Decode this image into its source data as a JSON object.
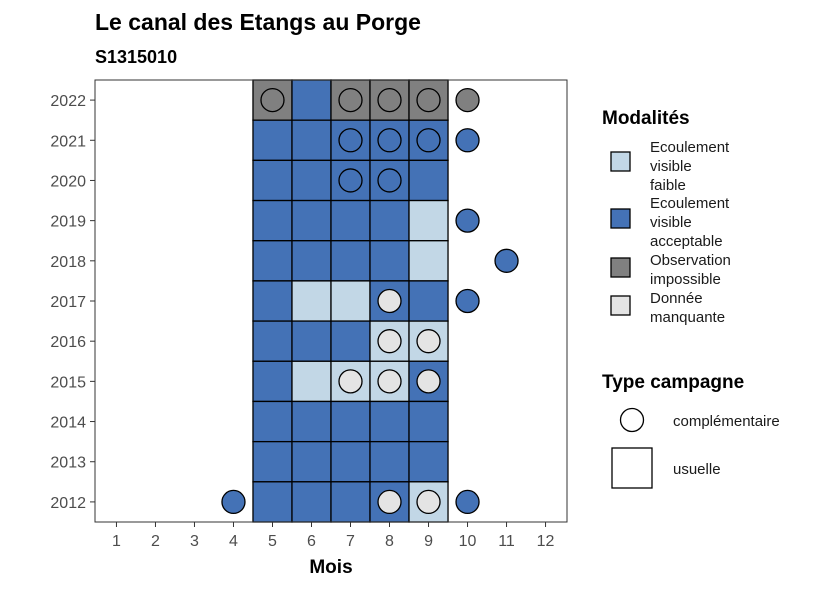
{
  "colors": {
    "faible": "#c2d7e6",
    "acceptable": "#4472b6",
    "impossible": "#808080",
    "manquante": "#e4e4e4",
    "border": "#000000"
  },
  "chart_data": {
    "type": "heatmap",
    "title": "Le canal des Etangs au Porge",
    "subtitle": "S1315010",
    "xlabel": "Mois",
    "ylabel": "",
    "x_ticks": [
      1,
      2,
      3,
      4,
      5,
      6,
      7,
      8,
      9,
      10,
      11,
      12
    ],
    "y_ticks": [
      2012,
      2013,
      2014,
      2015,
      2016,
      2017,
      2018,
      2019,
      2020,
      2021,
      2022
    ],
    "legend_modalites": {
      "title": "Modalités",
      "entries": [
        {
          "key": "faible",
          "lines": [
            "Ecoulement",
            "visible",
            "faible"
          ]
        },
        {
          "key": "acceptable",
          "lines": [
            "Ecoulement",
            "visible",
            "acceptable"
          ]
        },
        {
          "key": "impossible",
          "lines": [
            "Observation",
            "impossible"
          ]
        },
        {
          "key": "manquante",
          "lines": [
            "Donnée",
            "manquante"
          ]
        }
      ]
    },
    "legend_campagne": {
      "title": "Type campagne",
      "entries": [
        {
          "key": "complementaire",
          "label": "complémentaire"
        },
        {
          "key": "usuelle",
          "label": "usuelle"
        }
      ]
    },
    "tiles": [
      {
        "year": 2022,
        "month": 5,
        "value": "impossible"
      },
      {
        "year": 2022,
        "month": 6,
        "value": "acceptable"
      },
      {
        "year": 2022,
        "month": 7,
        "value": "impossible"
      },
      {
        "year": 2022,
        "month": 8,
        "value": "impossible"
      },
      {
        "year": 2022,
        "month": 9,
        "value": "impossible"
      },
      {
        "year": 2021,
        "month": 5,
        "value": "acceptable"
      },
      {
        "year": 2021,
        "month": 6,
        "value": "acceptable"
      },
      {
        "year": 2021,
        "month": 7,
        "value": "acceptable"
      },
      {
        "year": 2021,
        "month": 8,
        "value": "acceptable"
      },
      {
        "year": 2021,
        "month": 9,
        "value": "acceptable"
      },
      {
        "year": 2020,
        "month": 5,
        "value": "acceptable"
      },
      {
        "year": 2020,
        "month": 6,
        "value": "acceptable"
      },
      {
        "year": 2020,
        "month": 7,
        "value": "acceptable"
      },
      {
        "year": 2020,
        "month": 8,
        "value": "acceptable"
      },
      {
        "year": 2020,
        "month": 9,
        "value": "acceptable"
      },
      {
        "year": 2019,
        "month": 5,
        "value": "acceptable"
      },
      {
        "year": 2019,
        "month": 6,
        "value": "acceptable"
      },
      {
        "year": 2019,
        "month": 7,
        "value": "acceptable"
      },
      {
        "year": 2019,
        "month": 8,
        "value": "acceptable"
      },
      {
        "year": 2019,
        "month": 9,
        "value": "faible"
      },
      {
        "year": 2018,
        "month": 5,
        "value": "acceptable"
      },
      {
        "year": 2018,
        "month": 6,
        "value": "acceptable"
      },
      {
        "year": 2018,
        "month": 7,
        "value": "acceptable"
      },
      {
        "year": 2018,
        "month": 8,
        "value": "acceptable"
      },
      {
        "year": 2018,
        "month": 9,
        "value": "faible"
      },
      {
        "year": 2017,
        "month": 5,
        "value": "acceptable"
      },
      {
        "year": 2017,
        "month": 6,
        "value": "faible"
      },
      {
        "year": 2017,
        "month": 7,
        "value": "faible"
      },
      {
        "year": 2017,
        "month": 8,
        "value": "acceptable"
      },
      {
        "year": 2017,
        "month": 9,
        "value": "acceptable"
      },
      {
        "year": 2016,
        "month": 5,
        "value": "acceptable"
      },
      {
        "year": 2016,
        "month": 6,
        "value": "acceptable"
      },
      {
        "year": 2016,
        "month": 7,
        "value": "acceptable"
      },
      {
        "year": 2016,
        "month": 8,
        "value": "faible"
      },
      {
        "year": 2016,
        "month": 9,
        "value": "faible"
      },
      {
        "year": 2015,
        "month": 5,
        "value": "acceptable"
      },
      {
        "year": 2015,
        "month": 6,
        "value": "faible"
      },
      {
        "year": 2015,
        "month": 7,
        "value": "faible"
      },
      {
        "year": 2015,
        "month": 8,
        "value": "faible"
      },
      {
        "year": 2015,
        "month": 9,
        "value": "acceptable"
      },
      {
        "year": 2014,
        "month": 5,
        "value": "acceptable"
      },
      {
        "year": 2014,
        "month": 6,
        "value": "acceptable"
      },
      {
        "year": 2014,
        "month": 7,
        "value": "acceptable"
      },
      {
        "year": 2014,
        "month": 8,
        "value": "acceptable"
      },
      {
        "year": 2014,
        "month": 9,
        "value": "acceptable"
      },
      {
        "year": 2013,
        "month": 5,
        "value": "acceptable"
      },
      {
        "year": 2013,
        "month": 6,
        "value": "acceptable"
      },
      {
        "year": 2013,
        "month": 7,
        "value": "acceptable"
      },
      {
        "year": 2013,
        "month": 8,
        "value": "acceptable"
      },
      {
        "year": 2013,
        "month": 9,
        "value": "acceptable"
      },
      {
        "year": 2012,
        "month": 5,
        "value": "acceptable"
      },
      {
        "year": 2012,
        "month": 6,
        "value": "acceptable"
      },
      {
        "year": 2012,
        "month": 7,
        "value": "acceptable"
      },
      {
        "year": 2012,
        "month": 8,
        "value": "acceptable"
      },
      {
        "year": 2012,
        "month": 9,
        "value": "faible"
      }
    ],
    "points": [
      {
        "year": 2022,
        "month": 5,
        "value": "impossible"
      },
      {
        "year": 2022,
        "month": 7,
        "value": "impossible"
      },
      {
        "year": 2022,
        "month": 8,
        "value": "impossible"
      },
      {
        "year": 2022,
        "month": 9,
        "value": "impossible"
      },
      {
        "year": 2022,
        "month": 10,
        "value": "impossible"
      },
      {
        "year": 2021,
        "month": 7,
        "value": "acceptable"
      },
      {
        "year": 2021,
        "month": 8,
        "value": "acceptable"
      },
      {
        "year": 2021,
        "month": 9,
        "value": "acceptable"
      },
      {
        "year": 2021,
        "month": 10,
        "value": "acceptable"
      },
      {
        "year": 2020,
        "month": 7,
        "value": "acceptable"
      },
      {
        "year": 2020,
        "month": 8,
        "value": "acceptable"
      },
      {
        "year": 2019,
        "month": 10,
        "value": "acceptable"
      },
      {
        "year": 2018,
        "month": 11,
        "value": "acceptable"
      },
      {
        "year": 2017,
        "month": 8,
        "value": "manquante"
      },
      {
        "year": 2017,
        "month": 10,
        "value": "acceptable"
      },
      {
        "year": 2016,
        "month": 8,
        "value": "manquante"
      },
      {
        "year": 2016,
        "month": 9,
        "value": "manquante"
      },
      {
        "year": 2015,
        "month": 7,
        "value": "manquante"
      },
      {
        "year": 2015,
        "month": 8,
        "value": "manquante"
      },
      {
        "year": 2015,
        "month": 9,
        "value": "manquante"
      },
      {
        "year": 2012,
        "month": 4,
        "value": "acceptable"
      },
      {
        "year": 2012,
        "month": 8,
        "value": "manquante"
      },
      {
        "year": 2012,
        "month": 9,
        "value": "manquante"
      },
      {
        "year": 2012,
        "month": 10,
        "value": "acceptable"
      }
    ]
  }
}
